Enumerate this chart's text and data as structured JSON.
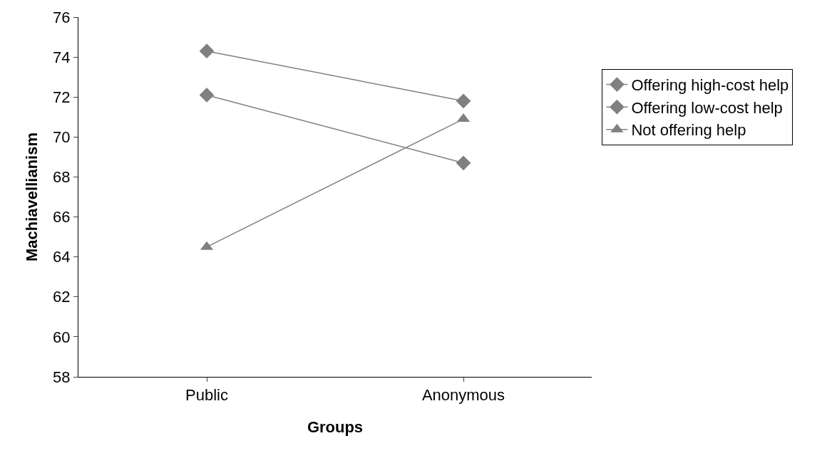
{
  "chart_data": {
    "type": "line",
    "xlabel": "Groups",
    "ylabel": "Machiavellianism",
    "categories": [
      "Public",
      "Anonymous"
    ],
    "series": [
      {
        "name": "Offering high-cost help",
        "color": "#808080",
        "marker": "diamond",
        "values": [
          74.3,
          71.8
        ]
      },
      {
        "name": "Offering low-cost help",
        "color": "#808080",
        "marker": "diamond",
        "values": [
          72.1,
          68.7
        ]
      },
      {
        "name": "Not offering help",
        "color": "#808080",
        "marker": "triangle",
        "values": [
          64.5,
          70.9
        ]
      }
    ],
    "ylim": [
      58,
      76
    ],
    "yticks": [
      58,
      60,
      62,
      64,
      66,
      68,
      70,
      72,
      74,
      76
    ],
    "grid": false,
    "legend": "right",
    "line_style": "solid"
  }
}
